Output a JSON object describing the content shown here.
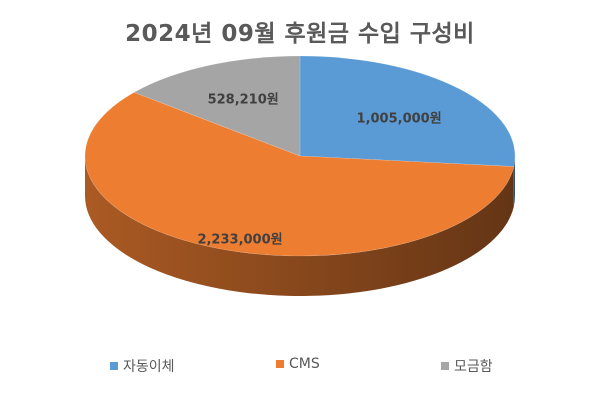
{
  "chart_data": {
    "type": "pie",
    "title": "2024년 09월 후원금 수입 구성비",
    "categories": [
      "자동이체",
      "CMS",
      "모금함"
    ],
    "values": [
      1005000,
      2233000,
      528210
    ],
    "labels": [
      "1,005,000원",
      "2,233,000원",
      "528,210원"
    ],
    "colors": [
      "#5B9BD5",
      "#ED7D31",
      "#A5A5A5"
    ],
    "legend_position": "bottom",
    "style": "3d"
  }
}
